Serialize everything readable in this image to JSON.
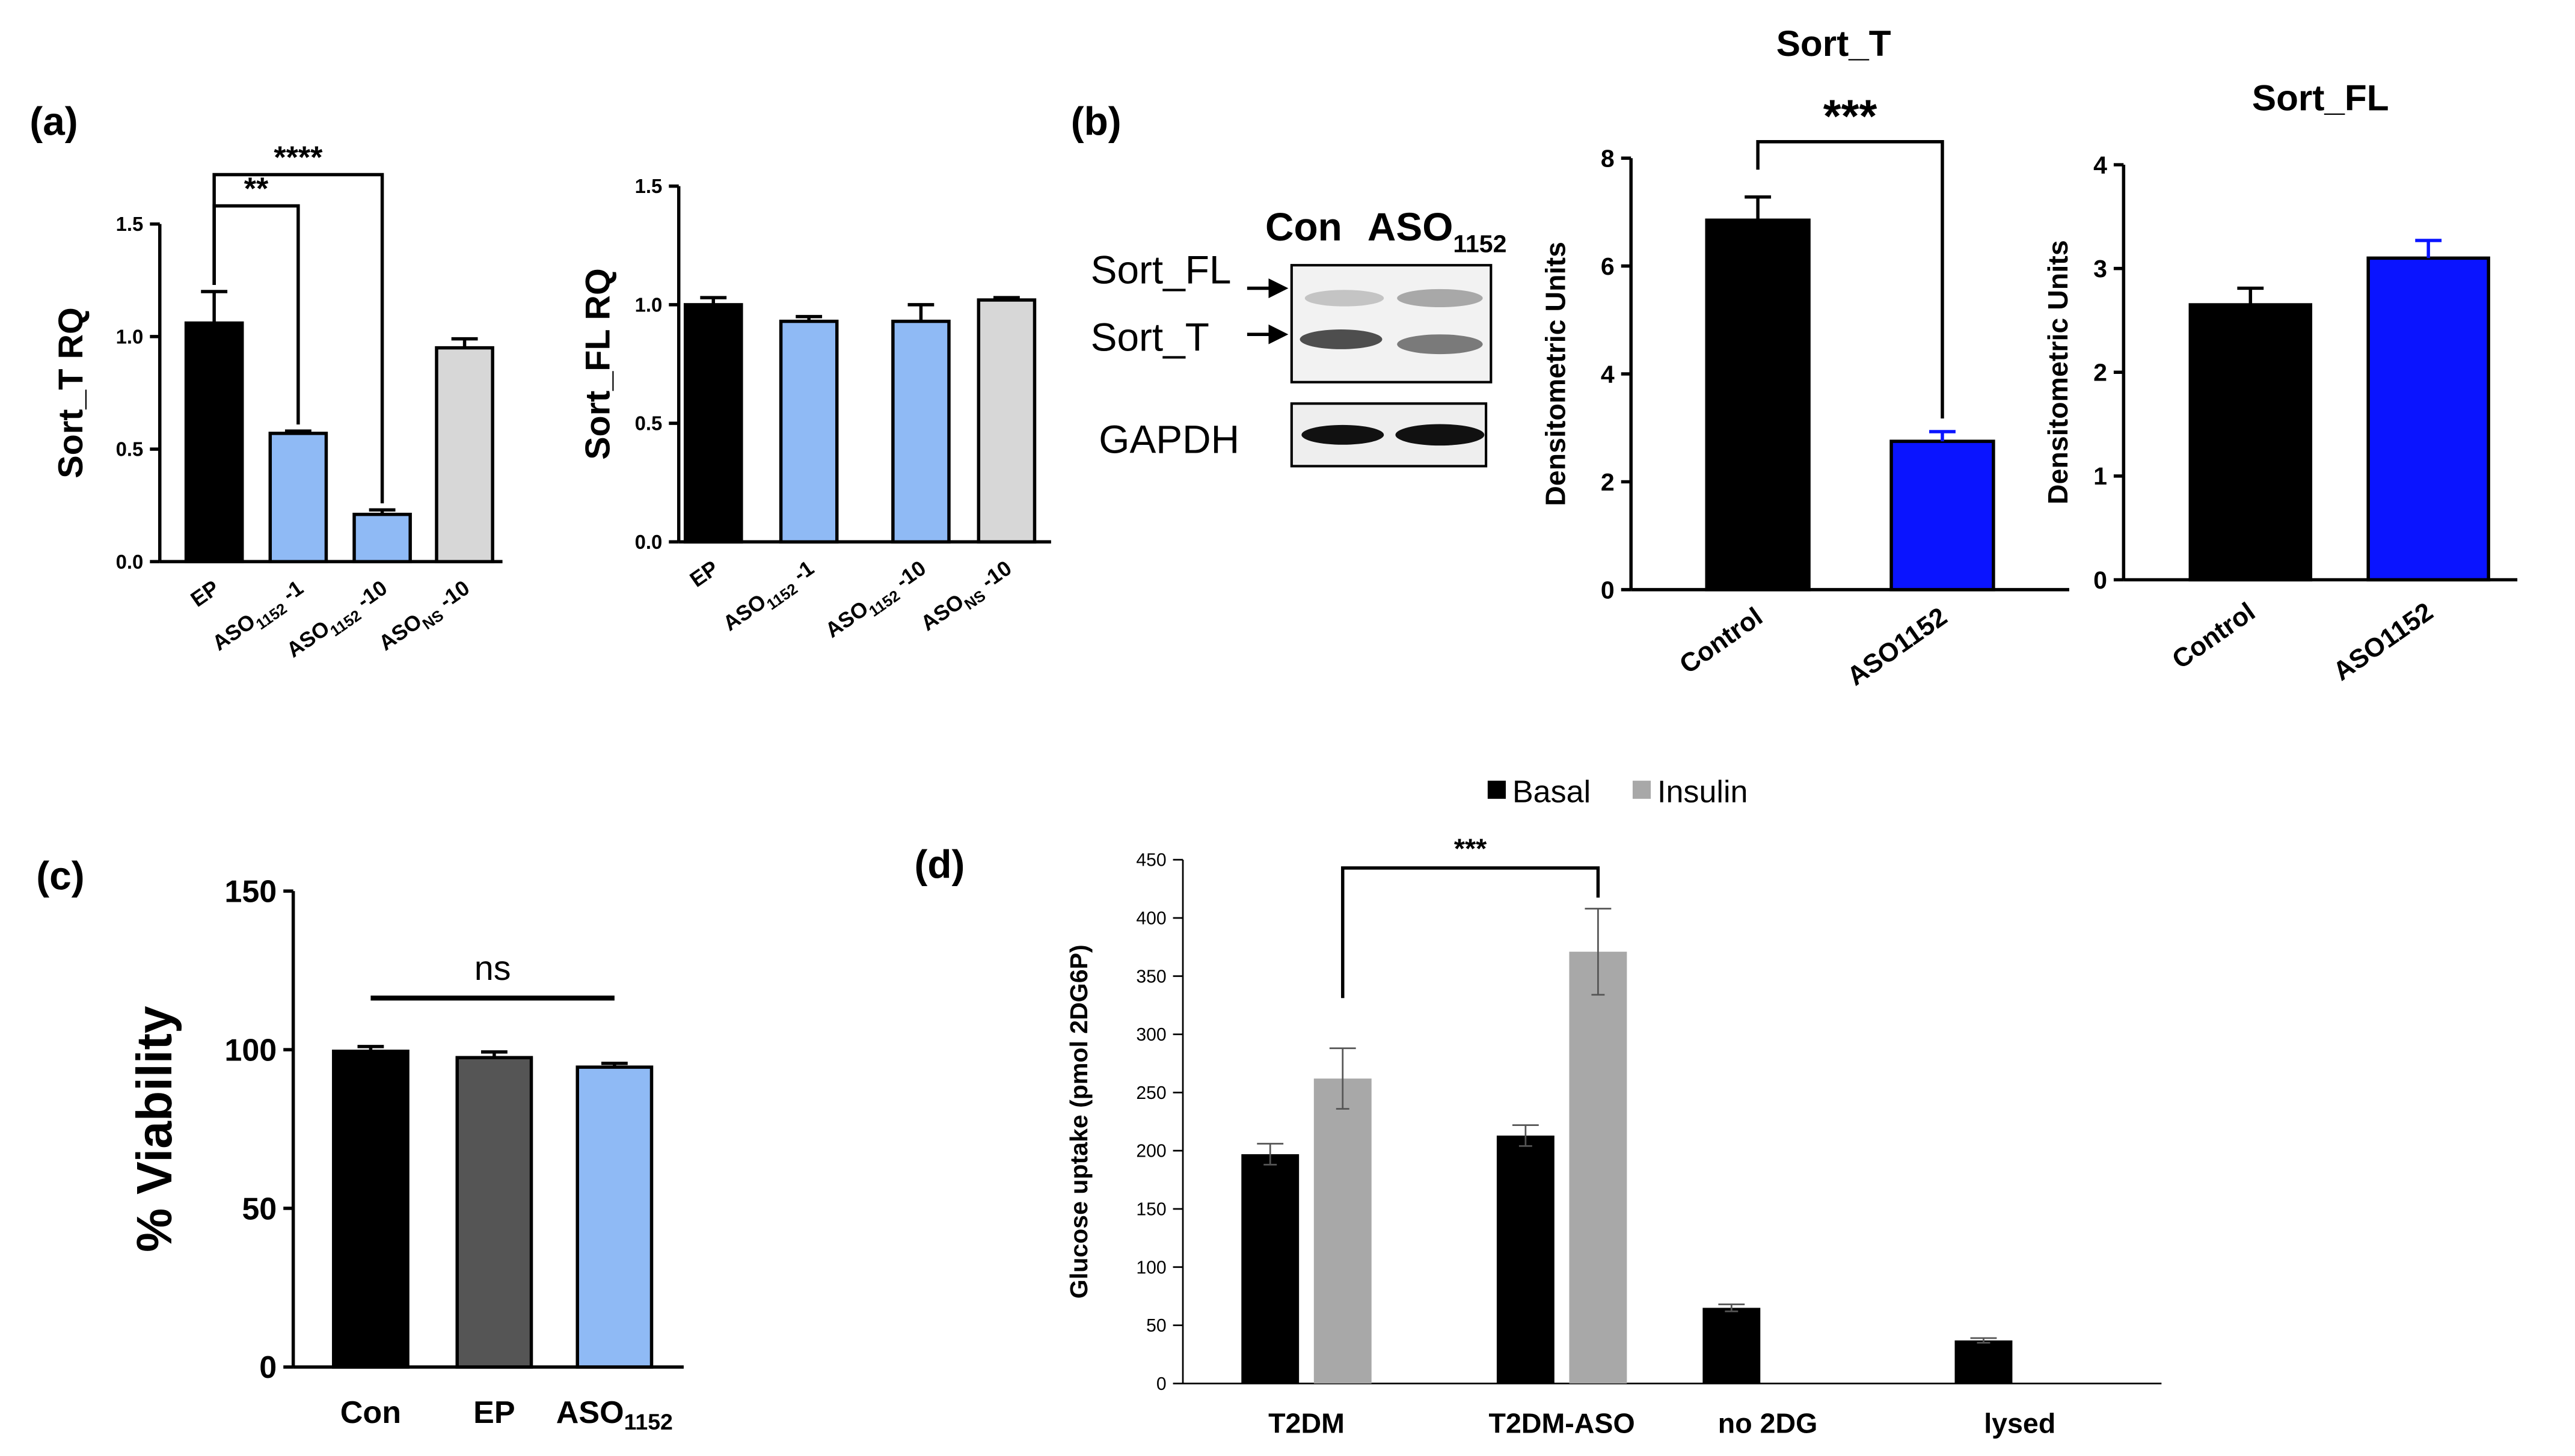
{
  "panel_labels": [
    "(a)",
    "(b)",
    "(c)",
    "(d)"
  ],
  "colors": {
    "black": "#000000",
    "light_blue": "#8fbaf5",
    "light_gray": "#d7d7d7",
    "dark_gray": "#555555",
    "blue": "#0a14ff",
    "insulin_gray": "#a8a8a8"
  },
  "western_blot": {
    "lanes": [
      "Con",
      "ASO"
    ],
    "lane2_subscript": "1152",
    "bands": [
      "Sort_FL",
      "Sort_T"
    ],
    "loading_control": "GAPDH"
  },
  "chart_data": [
    {
      "id": "a1",
      "type": "bar",
      "ylabel": "Sort_T RQ",
      "categories": [
        "EP",
        "ASO 1152 -1",
        "ASO 1152 -10",
        "ASO NS -10"
      ],
      "tick_labels": [
        {
          "main": "EP",
          "sub": "",
          "tail": ""
        },
        {
          "main": "ASO",
          "sub": "1152",
          "tail": " -1"
        },
        {
          "main": "ASO",
          "sub": "1152",
          "tail": " -10"
        },
        {
          "main": "ASO",
          "sub": "NS",
          "tail": " -10"
        }
      ],
      "values": [
        1.06,
        0.57,
        0.21,
        0.95
      ],
      "errors": [
        0.14,
        0.01,
        0.02,
        0.04
      ],
      "colors": [
        "#000000",
        "#8fbaf5",
        "#8fbaf5",
        "#d7d7d7"
      ],
      "ylim": [
        0,
        1.5
      ],
      "yticks": [
        "0.0",
        "0.5",
        "1.0",
        "1.5"
      ],
      "significance": [
        {
          "from": 0,
          "to": 1,
          "label": "**"
        },
        {
          "from": 0,
          "to": 2,
          "label": "****"
        }
      ]
    },
    {
      "id": "a2",
      "type": "bar",
      "ylabel": "Sort_FL RQ",
      "categories": [
        "EP",
        "ASO 1152 -1",
        "ASO 1152 -10",
        "ASO NS -10"
      ],
      "tick_labels": [
        {
          "main": "EP",
          "sub": "",
          "tail": ""
        },
        {
          "main": "ASO",
          "sub": "1152",
          "tail": " -1"
        },
        {
          "main": "ASO",
          "sub": "1152",
          "tail": " -10"
        },
        {
          "main": "ASO",
          "sub": "NS",
          "tail": " -10"
        }
      ],
      "values": [
        1.0,
        0.93,
        0.93,
        1.02
      ],
      "errors": [
        0.03,
        0.02,
        0.07,
        0.01
      ],
      "colors": [
        "#000000",
        "#8fbaf5",
        "#8fbaf5",
        "#d7d7d7"
      ],
      "ylim": [
        0,
        1.5
      ],
      "yticks": [
        "0.0",
        "0.5",
        "1.0",
        "1.5"
      ],
      "significance": []
    },
    {
      "id": "b1",
      "type": "bar",
      "title": "Sort_T",
      "ylabel": "Densitometric Units",
      "categories": [
        "Control",
        "ASO1152"
      ],
      "values": [
        6.85,
        2.75
      ],
      "errors": [
        0.43,
        0.18
      ],
      "colors": [
        "#000000",
        "#0a14ff"
      ],
      "ylim": [
        0,
        8
      ],
      "yticks": [
        "0",
        "2",
        "4",
        "6",
        "8"
      ],
      "significance": [
        {
          "from": 0,
          "to": 1,
          "label": "***"
        }
      ]
    },
    {
      "id": "b2",
      "type": "bar",
      "title": "Sort_FL",
      "ylabel": "Densitometric Units",
      "categories": [
        "Control",
        "ASO1152"
      ],
      "values": [
        2.65,
        3.1
      ],
      "errors": [
        0.16,
        0.17
      ],
      "colors": [
        "#000000",
        "#0a14ff"
      ],
      "ylim": [
        0,
        4
      ],
      "yticks": [
        "0",
        "1",
        "2",
        "3",
        "4"
      ],
      "significance": []
    },
    {
      "id": "c",
      "type": "bar",
      "ylabel": "% Viability",
      "categories": [
        "Con",
        "EP",
        "ASO 1152"
      ],
      "tick_labels": [
        {
          "main": "Con",
          "sub": "",
          "tail": ""
        },
        {
          "main": "EP",
          "sub": "",
          "tail": ""
        },
        {
          "main": "ASO",
          "sub": "1152",
          "tail": ""
        }
      ],
      "values": [
        99.5,
        97.5,
        94.5
      ],
      "errors": [
        1.5,
        1.8,
        1.2
      ],
      "colors": [
        "#000000",
        "#555555",
        "#8fbaf5"
      ],
      "ylim": [
        0,
        150
      ],
      "yticks": [
        "0",
        "50",
        "100",
        "150"
      ],
      "significance": [
        {
          "from": 0,
          "to": 2,
          "label": "ns"
        }
      ]
    },
    {
      "id": "d",
      "type": "bar",
      "ylabel": "Glucose uptake (pmol 2DG6P)",
      "categories": [
        "T2DM",
        "T2DM-ASO",
        "no 2DG",
        "lysed"
      ],
      "series": [
        {
          "name": "Basal",
          "color": "#000000",
          "values": [
            197,
            213,
            65,
            37
          ],
          "errors": [
            9,
            9,
            3,
            2
          ]
        },
        {
          "name": "Insulin",
          "color": "#a8a8a8",
          "values": [
            262,
            371,
            null,
            null
          ],
          "errors": [
            26,
            37,
            null,
            null
          ]
        }
      ],
      "ylim": [
        0,
        450
      ],
      "yticks": [
        "0",
        "50",
        "100",
        "150",
        "200",
        "250",
        "300",
        "350",
        "400",
        "450"
      ],
      "significance": [
        {
          "from_bar": [
            0,
            1
          ],
          "to_bar": [
            1,
            1
          ],
          "label": "***"
        }
      ]
    }
  ]
}
